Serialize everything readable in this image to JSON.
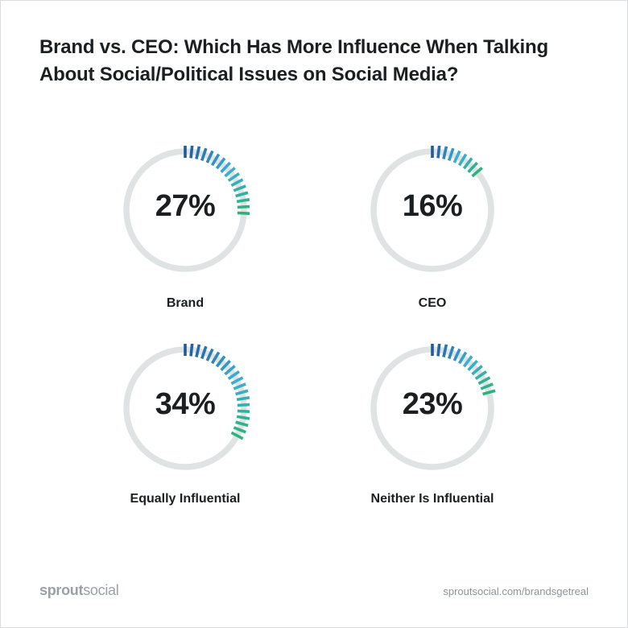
{
  "title": "Brand vs. CEO: Which Has More Influence When Talking About Social/Political Issues on Social Media?",
  "chart_data": {
    "type": "donut",
    "title": "Brand vs. CEO: Which Has More Influence When Talking About Social/Political Issues on Social Media?",
    "unit": "%",
    "categories": [
      "Brand",
      "CEO",
      "Equally Influential",
      "Neither Is Influential"
    ],
    "values": [
      27,
      16,
      34,
      23
    ],
    "labels": [
      "27%",
      "16%",
      "34%",
      "23%"
    ],
    "colors": {
      "track": "#dfe3e4",
      "gradient_start": "#1f5b9b",
      "gradient_mid": "#3aaed8",
      "gradient_end": "#2ab37a"
    }
  },
  "footer": {
    "logo_part1": "sprout",
    "logo_part2": "social",
    "url": "sproutsocial.com/brandsgetreal"
  }
}
